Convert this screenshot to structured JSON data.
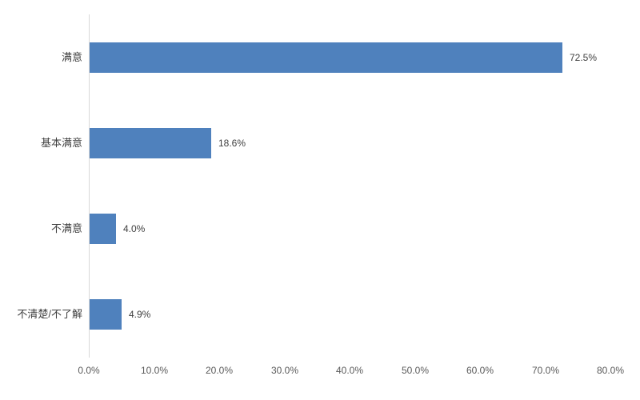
{
  "chart_data": {
    "type": "bar",
    "orientation": "horizontal",
    "title": "",
    "xlabel": "",
    "ylabel": "",
    "categories": [
      "满意",
      "基本满意",
      "不满意",
      "不清楚/不了解"
    ],
    "values": [
      72.5,
      18.6,
      4.0,
      4.9
    ],
    "data_labels": [
      "72.5%",
      "18.6%",
      "4.0%",
      "4.9%"
    ],
    "xlim": [
      0,
      80
    ],
    "x_tick_labels": [
      "0.0%",
      "10.0%",
      "20.0%",
      "30.0%",
      "40.0%",
      "50.0%",
      "60.0%",
      "70.0%",
      "80.0%"
    ],
    "x_tick_values": [
      0,
      10,
      20,
      30,
      40,
      50,
      60,
      70,
      80
    ],
    "grid": false,
    "legend": false,
    "colors": {
      "bar_fill": "#4F81BD",
      "axis_line": "#D9D9D9",
      "category_label": "#404040",
      "data_label": "#404040",
      "tick_label": "#595959"
    }
  }
}
